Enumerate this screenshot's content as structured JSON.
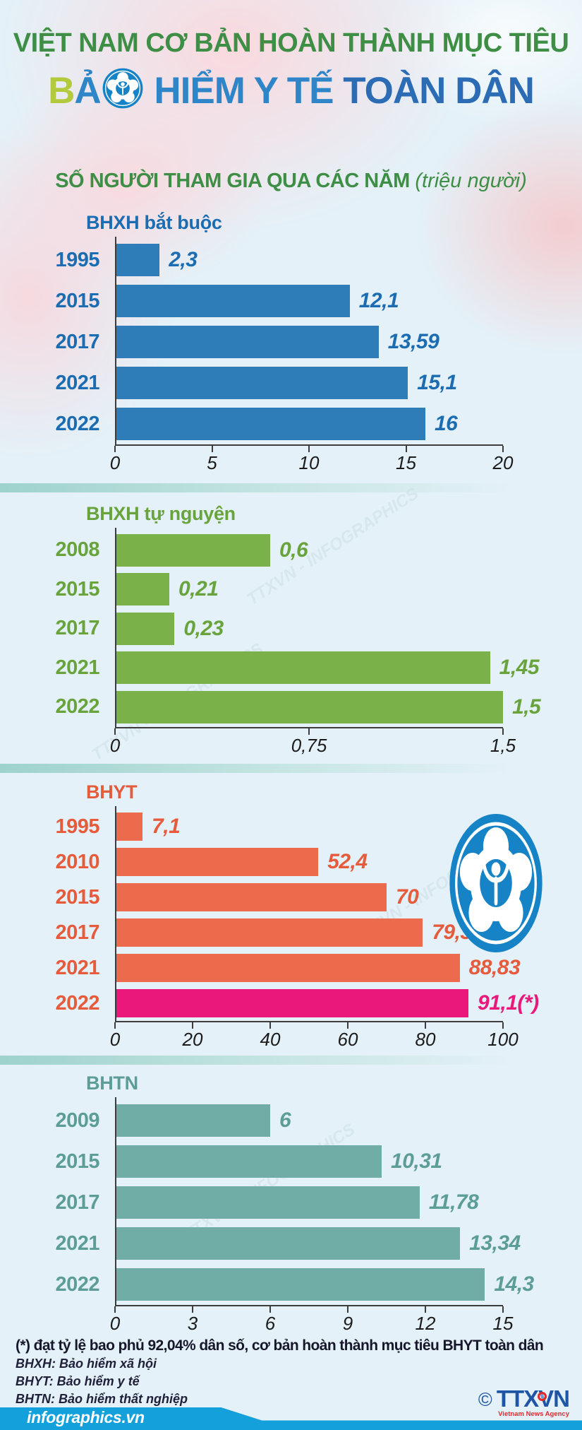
{
  "header": {
    "title_line1": "VIỆT NAM CƠ BẢN HOÀN THÀNH MỤC TIÊU",
    "title_line2_b": "B",
    "title_line2_a": "Ả",
    "title_line2_rest1": " HIỂM Y TẾ",
    "title_line2_rest2": " TOÀN DÂN",
    "logo": "vietnam-social-security-flower-logo",
    "subtitle": "SỐ NGƯỜI THAM GIA QUA CÁC NĂM",
    "subtitle_unit": "(triệu người)"
  },
  "chart_data": [
    {
      "type": "bar",
      "orientation": "horizontal",
      "title": "BHXH bắt buộc",
      "categories": [
        "1995",
        "2015",
        "2017",
        "2021",
        "2022"
      ],
      "values": [
        2.3,
        12.1,
        13.59,
        15.1,
        16
      ],
      "value_labels": [
        "2,3",
        "12,1",
        "13,59",
        "15,1",
        "16"
      ],
      "xlim": [
        0,
        20
      ],
      "tick_values": [
        0,
        5,
        10,
        15,
        20
      ],
      "tick_labels": [
        "0",
        "5",
        "10",
        "15",
        "20"
      ],
      "bar_color": "#2e7cb8",
      "text_color": "#1b6cb1",
      "grid": false,
      "legend": false
    },
    {
      "type": "bar",
      "orientation": "horizontal",
      "title": "BHXH tự nguyện",
      "categories": [
        "2008",
        "2015",
        "2017",
        "2021",
        "2022"
      ],
      "values": [
        0.6,
        0.21,
        0.23,
        1.45,
        1.5
      ],
      "value_labels": [
        "0,6",
        "0,21",
        "0,23",
        "1,45",
        "1,5"
      ],
      "xlim": [
        0,
        1.5
      ],
      "tick_values": [
        0,
        0.75,
        1.5
      ],
      "tick_labels": [
        "0",
        "0,75",
        "1,5"
      ],
      "bar_color": "#7ab148",
      "text_color": "#68a33c",
      "grid": false,
      "legend": false
    },
    {
      "type": "bar",
      "orientation": "horizontal",
      "title": "BHYT",
      "categories": [
        "1995",
        "2010",
        "2015",
        "2017",
        "2021",
        "2022"
      ],
      "values": [
        7.1,
        52.4,
        70,
        79.3,
        88.83,
        91.1
      ],
      "value_labels": [
        "7,1",
        "52,4",
        "70",
        "79,3",
        "88,83",
        "91,1(*)"
      ],
      "xlim": [
        0,
        100
      ],
      "tick_values": [
        0,
        20,
        40,
        60,
        80,
        100
      ],
      "tick_labels": [
        "0",
        "20",
        "40",
        "60",
        "80",
        "100"
      ],
      "bar_color": "#ed6b4d",
      "text_color": "#e55b3c",
      "highlight_index": 5,
      "highlight_color": "#ea187a",
      "grid": false,
      "legend": false
    },
    {
      "type": "bar",
      "orientation": "horizontal",
      "title": "BHTN",
      "categories": [
        "2009",
        "2015",
        "2017",
        "2021",
        "2022"
      ],
      "values": [
        6,
        10.31,
        11.78,
        13.34,
        14.3
      ],
      "value_labels": [
        "6",
        "10,31",
        "11,78",
        "13,34",
        "14,3"
      ],
      "xlim": [
        0,
        15
      ],
      "tick_values": [
        0,
        3,
        6,
        9,
        12,
        15
      ],
      "tick_labels": [
        "0",
        "3",
        "6",
        "9",
        "12",
        "15"
      ],
      "bar_color": "#70ada6",
      "text_color": "#5d9d97",
      "grid": false,
      "legend": false
    }
  ],
  "footnote": {
    "asterisk_note": "(*) đạt tỷ lệ bao phủ 92,04% dân số, cơ bản hoàn thành mục tiêu BHYT toàn dân",
    "abbreviations": [
      "BHXH: Bảo hiểm xã hội",
      "BHYT: Bảo hiểm y tế",
      "BHTN: Bảo hiểm thất nghiệp"
    ]
  },
  "footer": {
    "site": "infographics.vn",
    "copyright": "©",
    "agency": "TTXVN",
    "agency_caption": "Vietnam News Agency"
  },
  "watermark": "TTXVN - INFOGRAPHICS",
  "colors": {
    "background": "#e4f1f8",
    "title_green": "#3e8e46",
    "title_blue": "#2b74c0",
    "title_lime": "#b2ca3b",
    "divider_teal": "#9ed2cd",
    "footer_blue": "#14a0db",
    "axis": "#3c3c3c",
    "logo_blue": "#1583c5"
  }
}
